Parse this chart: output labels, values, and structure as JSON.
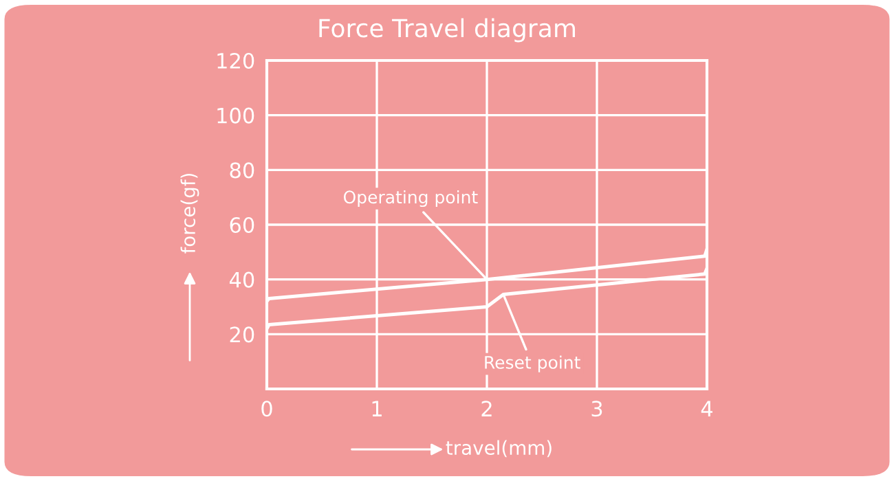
{
  "chart_data": {
    "type": "line",
    "title": "Force Travel diagram",
    "xlabel": "travel(mm)",
    "ylabel": "force(gf)",
    "xlim": [
      0,
      4
    ],
    "xticks": [
      0,
      1,
      2,
      3,
      4
    ],
    "ylim": [
      0,
      120
    ],
    "yticks": [
      20,
      40,
      60,
      80,
      100,
      120
    ],
    "grid": true,
    "series": [
      {
        "color": "#ffffff",
        "x": [
          0,
          0.02,
          2,
          3.98,
          4
        ],
        "values": [
          32,
          33,
          40,
          48.5,
          51
        ]
      },
      {
        "color": "#ffffff",
        "x": [
          0,
          0.02,
          2,
          2.15,
          3.98,
          4
        ],
        "values": [
          22,
          23.5,
          30,
          34.5,
          42,
          44
        ]
      }
    ],
    "annotations": [
      {
        "text": "Operating point",
        "x": 2,
        "y": 40
      },
      {
        "text": "Reset point",
        "x": 2.15,
        "y": 34.5
      }
    ]
  }
}
